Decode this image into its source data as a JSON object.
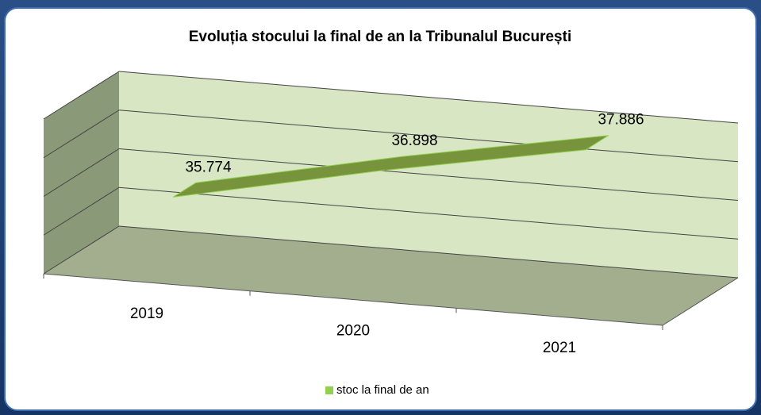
{
  "chart_data": {
    "type": "line3d",
    "title": "Evoluția stocului la final de an la Tribunalul București",
    "categories": [
      "2019",
      "2020",
      "2021"
    ],
    "series": [
      {
        "name": "stoc la final de an",
        "color": "#77933c",
        "values": [
          35774,
          36898,
          37886
        ],
        "value_labels": [
          "35.774",
          "36.898",
          "37.886"
        ]
      }
    ],
    "ylim": [
      34000,
      38000
    ],
    "yticks": [
      34000,
      35000,
      36000,
      37000,
      38000
    ],
    "grid": true,
    "legend": "bottom"
  }
}
